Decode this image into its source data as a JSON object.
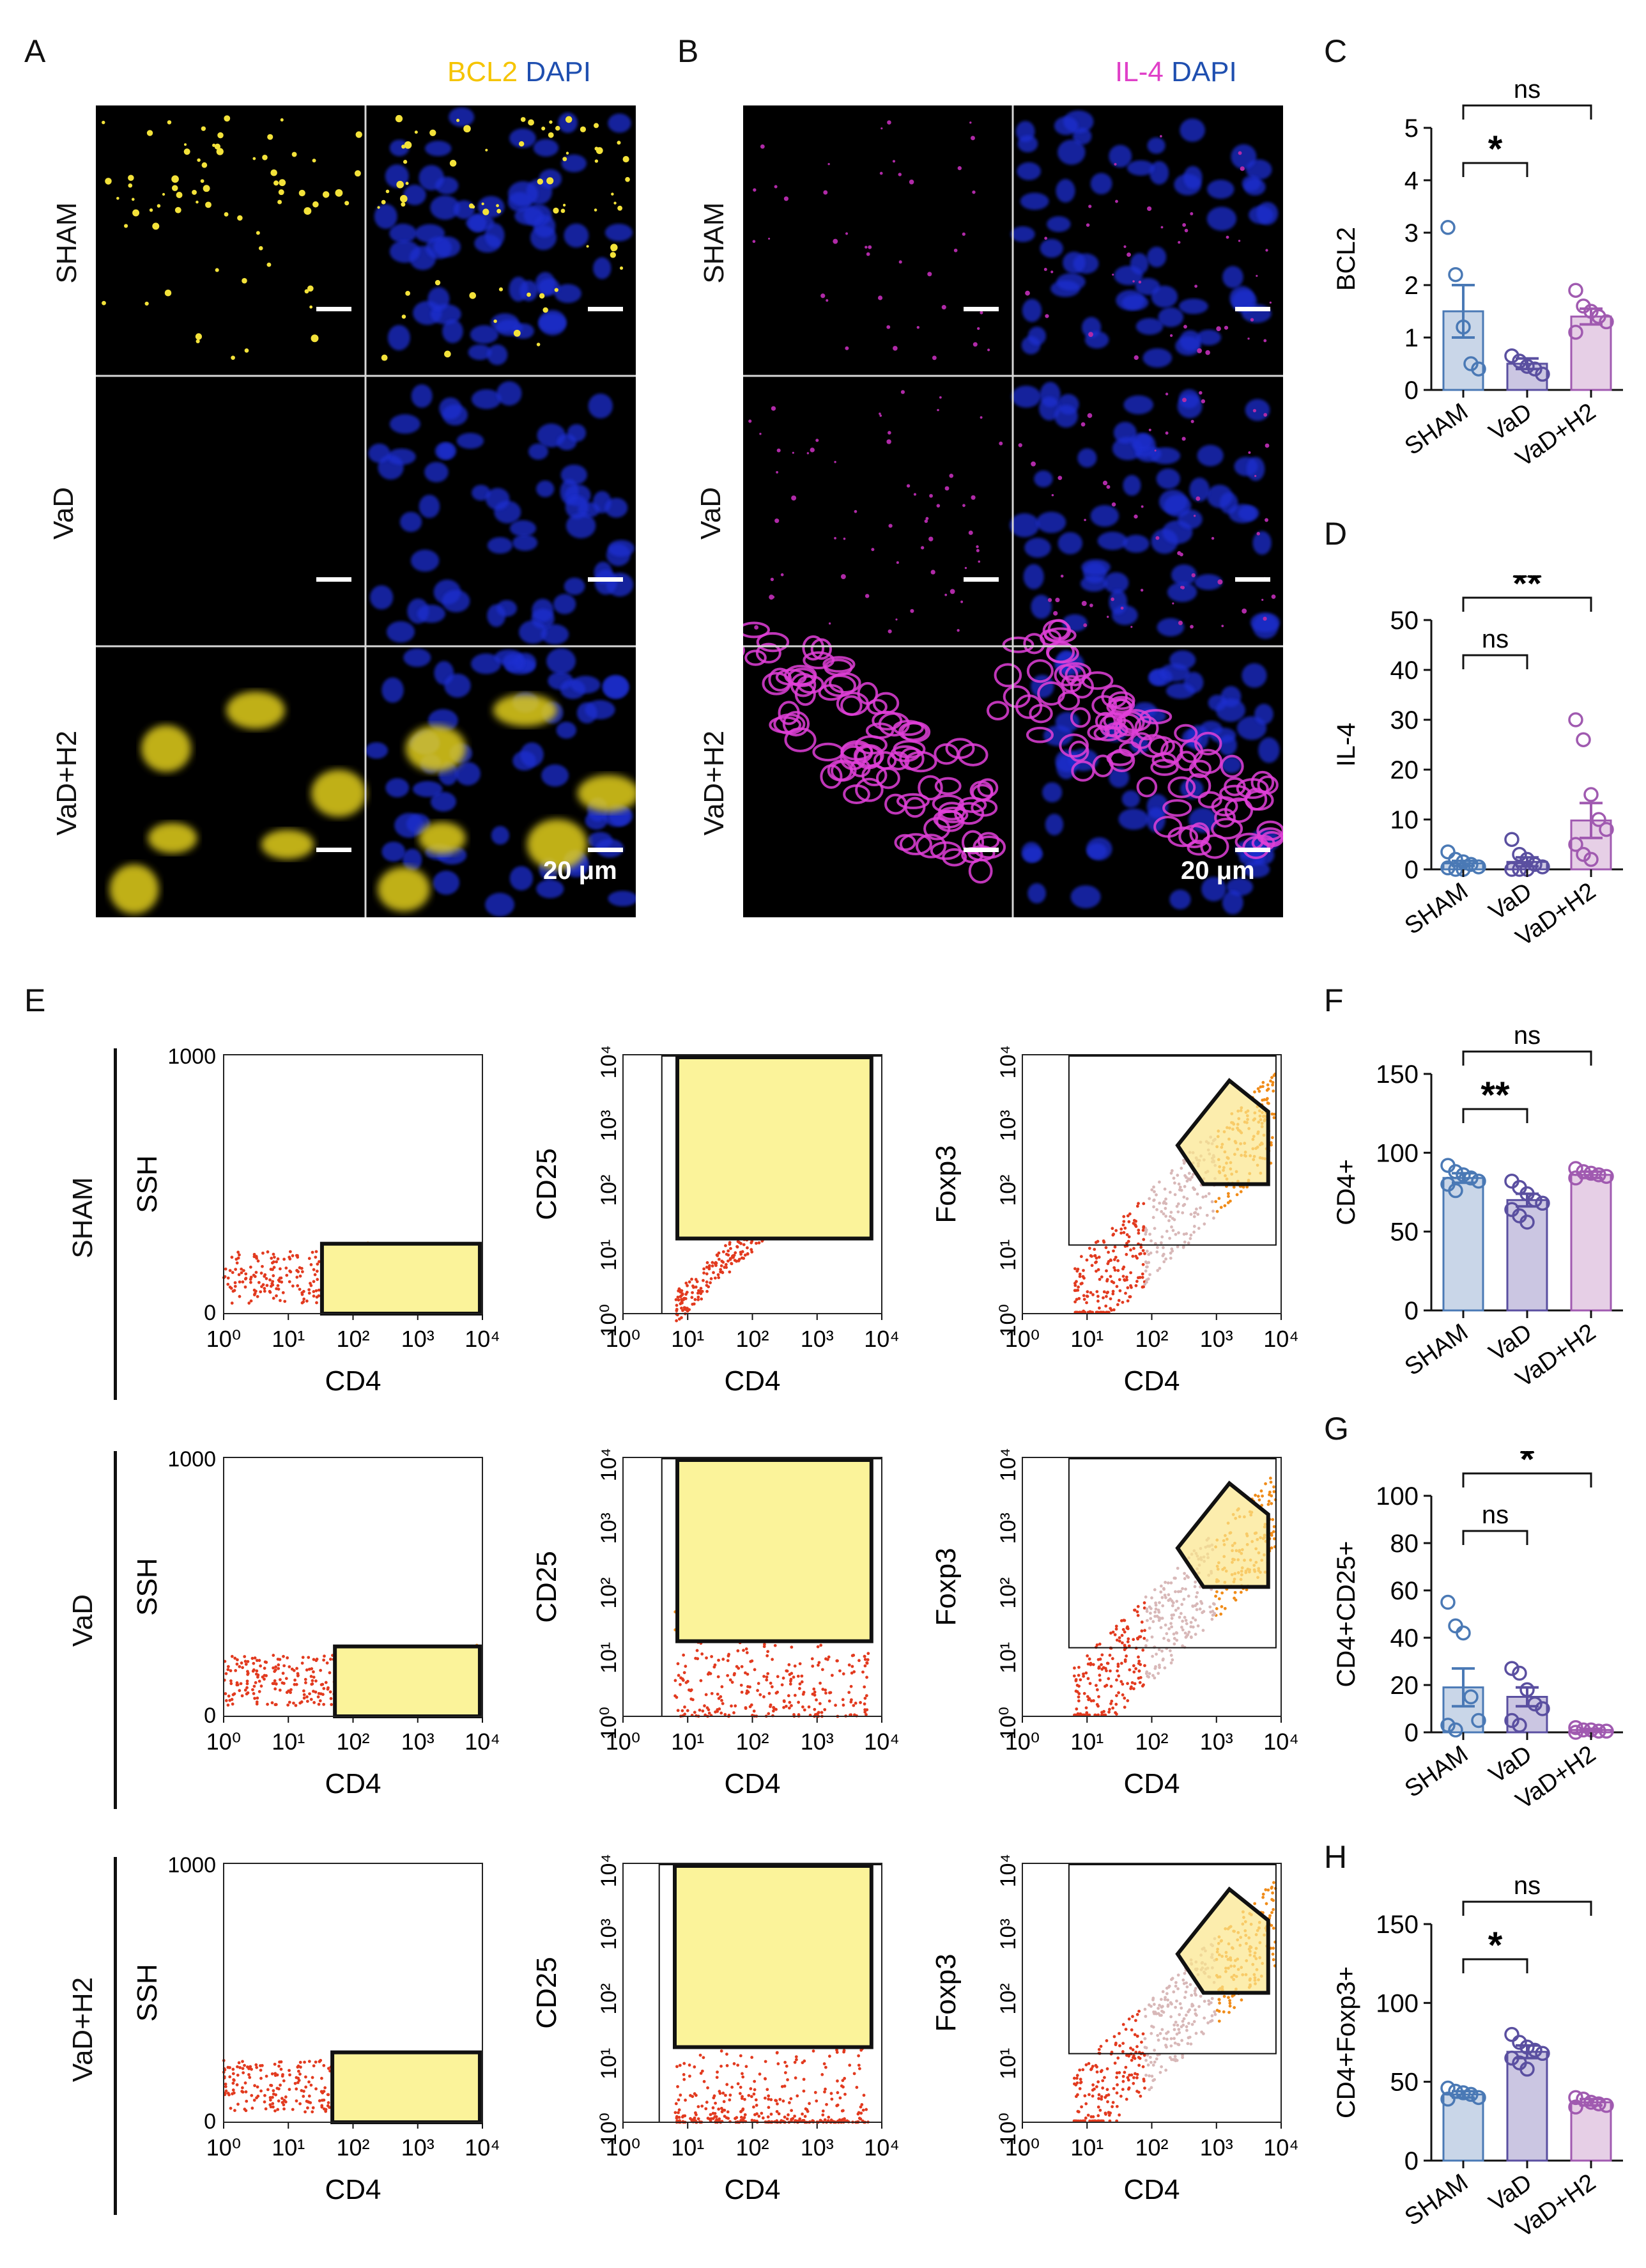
{
  "panels": {
    "A": {
      "letter": "A",
      "stain1": "BCL2",
      "stain2": "DAPI",
      "stain1_color": "#f5c400",
      "stain2_color": "#1f4fb0"
    },
    "B": {
      "letter": "B",
      "stain1": "IL-4",
      "stain2": "DAPI",
      "stain1_color": "#e040c8",
      "stain2_color": "#1f4fb0"
    },
    "C": {
      "letter": "C"
    },
    "D": {
      "letter": "D"
    },
    "E": {
      "letter": "E"
    },
    "F": {
      "letter": "F"
    },
    "G": {
      "letter": "G"
    },
    "H": {
      "letter": "H"
    }
  },
  "groups": [
    "SHAM",
    "VaD",
    "VaD+H2"
  ],
  "scale_bar": "20 μm",
  "flow": {
    "xlabel": "CD4",
    "ylabels": [
      "SSH",
      "CD25",
      "Foxp3"
    ],
    "ssh_ticks": [
      "1000",
      "0"
    ],
    "x_ticks": [
      "10⁰",
      "10¹",
      "10²",
      "10³",
      "10⁴"
    ],
    "y_ticks": [
      "10⁴",
      "10³",
      "10²",
      "10¹",
      "10⁰"
    ]
  },
  "chart_data": [
    {
      "id": "C",
      "type": "bar",
      "ylabel": "BCL2",
      "ylim": [
        0,
        5
      ],
      "yticks": [
        0,
        1,
        2,
        3,
        4,
        5
      ],
      "categories": [
        "SHAM",
        "VaD",
        "VaD+H2"
      ],
      "values": [
        1.5,
        0.5,
        1.4
      ],
      "errors": [
        0.5,
        0.1,
        0.15
      ],
      "points": [
        [
          3.1,
          2.2,
          1.2,
          0.5,
          0.4
        ],
        [
          0.65,
          0.55,
          0.45,
          0.4,
          0.3
        ],
        [
          1.9,
          1.6,
          1.5,
          1.4,
          1.3,
          1.1
        ]
      ],
      "sig": [
        {
          "from": 0,
          "to": 2,
          "label": "ns"
        },
        {
          "from": 0,
          "to": 1,
          "label": "*"
        }
      ],
      "colors": [
        "#4a79b5",
        "#5a4fa0",
        "#a05ab0"
      ],
      "fills": [
        "#c9d6e8",
        "#cbc6e2",
        "#e6cfe6"
      ]
    },
    {
      "id": "D",
      "type": "bar",
      "ylabel": "IL-4",
      "ylim": [
        0,
        50
      ],
      "yticks": [
        0,
        10,
        20,
        30,
        40,
        50
      ],
      "categories": [
        "SHAM",
        "VaD",
        "VaD+H2"
      ],
      "values": [
        1.2,
        1.5,
        9.8
      ],
      "errors": [
        0.5,
        0.9,
        3.5
      ],
      "points": [
        [
          3.5,
          2,
          1.5,
          1,
          0.5,
          0.3,
          0,
          0
        ],
        [
          6,
          3,
          2,
          1,
          0.5,
          0,
          0,
          0
        ],
        [
          30,
          26,
          15,
          10,
          8,
          5,
          3,
          2
        ]
      ],
      "sig": [
        {
          "from": 0,
          "to": 2,
          "label": "**"
        },
        {
          "from": 0,
          "to": 1,
          "label": "ns"
        }
      ],
      "colors": [
        "#4a79b5",
        "#5a4fa0",
        "#a05ab0"
      ],
      "fills": [
        "#c9d6e8",
        "#cbc6e2",
        "#e6cfe6"
      ]
    },
    {
      "id": "F",
      "type": "bar",
      "ylabel": "CD4+",
      "ylim": [
        0,
        150
      ],
      "yticks": [
        0,
        50,
        100,
        150
      ],
      "categories": [
        "SHAM",
        "VaD",
        "VaD+H2"
      ],
      "values": [
        84,
        70,
        86
      ],
      "errors": [
        3,
        4,
        2
      ],
      "points": [
        [
          92,
          88,
          86,
          84,
          82,
          80,
          76
        ],
        [
          82,
          78,
          74,
          70,
          68,
          64,
          60,
          56
        ],
        [
          90,
          88,
          87,
          86,
          85,
          84
        ]
      ],
      "sig": [
        {
          "from": 0,
          "to": 2,
          "label": "ns"
        },
        {
          "from": 0,
          "to": 1,
          "label": "**"
        }
      ],
      "colors": [
        "#4a79b5",
        "#5a4fa0",
        "#a05ab0"
      ],
      "fills": [
        "#c9d6e8",
        "#cbc6e2",
        "#e6cfe6"
      ]
    },
    {
      "id": "G",
      "type": "bar",
      "ylabel": "CD4+CD25+",
      "ylim": [
        0,
        100
      ],
      "yticks": [
        0,
        20,
        40,
        60,
        80,
        100
      ],
      "categories": [
        "SHAM",
        "VaD",
        "VaD+H2"
      ],
      "values": [
        19,
        15,
        1
      ],
      "errors": [
        8,
        4,
        0.5
      ],
      "points": [
        [
          55,
          45,
          42,
          15,
          5,
          3,
          1
        ],
        [
          27,
          25,
          18,
          12,
          10,
          5,
          3
        ],
        [
          2,
          1,
          1,
          0.5,
          0.5,
          0
        ]
      ],
      "sig": [
        {
          "from": 0,
          "to": 2,
          "label": "*"
        },
        {
          "from": 0,
          "to": 1,
          "label": "ns"
        }
      ],
      "colors": [
        "#4a79b5",
        "#5a4fa0",
        "#a05ab0"
      ],
      "fills": [
        "#c9d6e8",
        "#cbc6e2",
        "#e6cfe6"
      ]
    },
    {
      "id": "H",
      "type": "bar",
      "ylabel": "CD4+Foxp3+",
      "ylim": [
        0,
        150
      ],
      "yticks": [
        0,
        50,
        100,
        150
      ],
      "categories": [
        "SHAM",
        "VaD",
        "VaD+H2"
      ],
      "values": [
        42,
        69,
        37
      ],
      "errors": [
        2,
        4,
        2
      ],
      "points": [
        [
          46,
          44,
          43,
          42,
          40,
          39
        ],
        [
          80,
          75,
          72,
          70,
          68,
          65,
          62,
          58
        ],
        [
          40,
          39,
          37,
          36,
          35,
          34
        ]
      ],
      "sig": [
        {
          "from": 0,
          "to": 2,
          "label": "ns"
        },
        {
          "from": 0,
          "to": 1,
          "label": "*"
        }
      ],
      "colors": [
        "#4a79b5",
        "#5a4fa0",
        "#a05ab0"
      ],
      "fills": [
        "#c9d6e8",
        "#cbc6e2",
        "#e6cfe6"
      ]
    }
  ]
}
